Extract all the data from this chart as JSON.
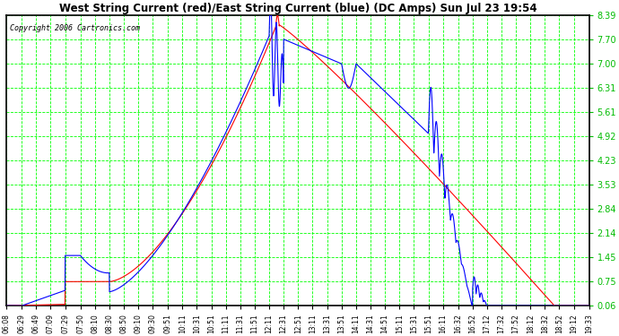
{
  "title": "West String Current (red)/East String Current (blue) (DC Amps) Sun Jul 23 19:54",
  "copyright": "Copyright 2006 Cartronics.com",
  "bg_color": "#ffffff",
  "plot_bg_color": "#ffffff",
  "grid_color": "#00ff00",
  "line_color_red": "#ff0000",
  "line_color_blue": "#0000ff",
  "yticks": [
    0.06,
    0.75,
    1.45,
    2.14,
    2.84,
    3.53,
    4.23,
    4.92,
    5.61,
    6.31,
    7.0,
    7.7,
    8.39
  ],
  "xtick_labels": [
    "06:08",
    "06:29",
    "06:49",
    "07:09",
    "07:29",
    "07:50",
    "08:10",
    "08:30",
    "08:50",
    "09:10",
    "09:30",
    "09:51",
    "10:11",
    "10:31",
    "10:51",
    "11:11",
    "11:31",
    "11:51",
    "12:11",
    "12:31",
    "12:51",
    "13:11",
    "13:31",
    "13:51",
    "14:11",
    "14:31",
    "14:51",
    "15:11",
    "15:31",
    "15:51",
    "16:11",
    "16:32",
    "16:52",
    "17:12",
    "17:32",
    "17:52",
    "18:12",
    "18:32",
    "18:52",
    "19:12",
    "19:33"
  ],
  "ymin": 0.06,
  "ymax": 8.39
}
